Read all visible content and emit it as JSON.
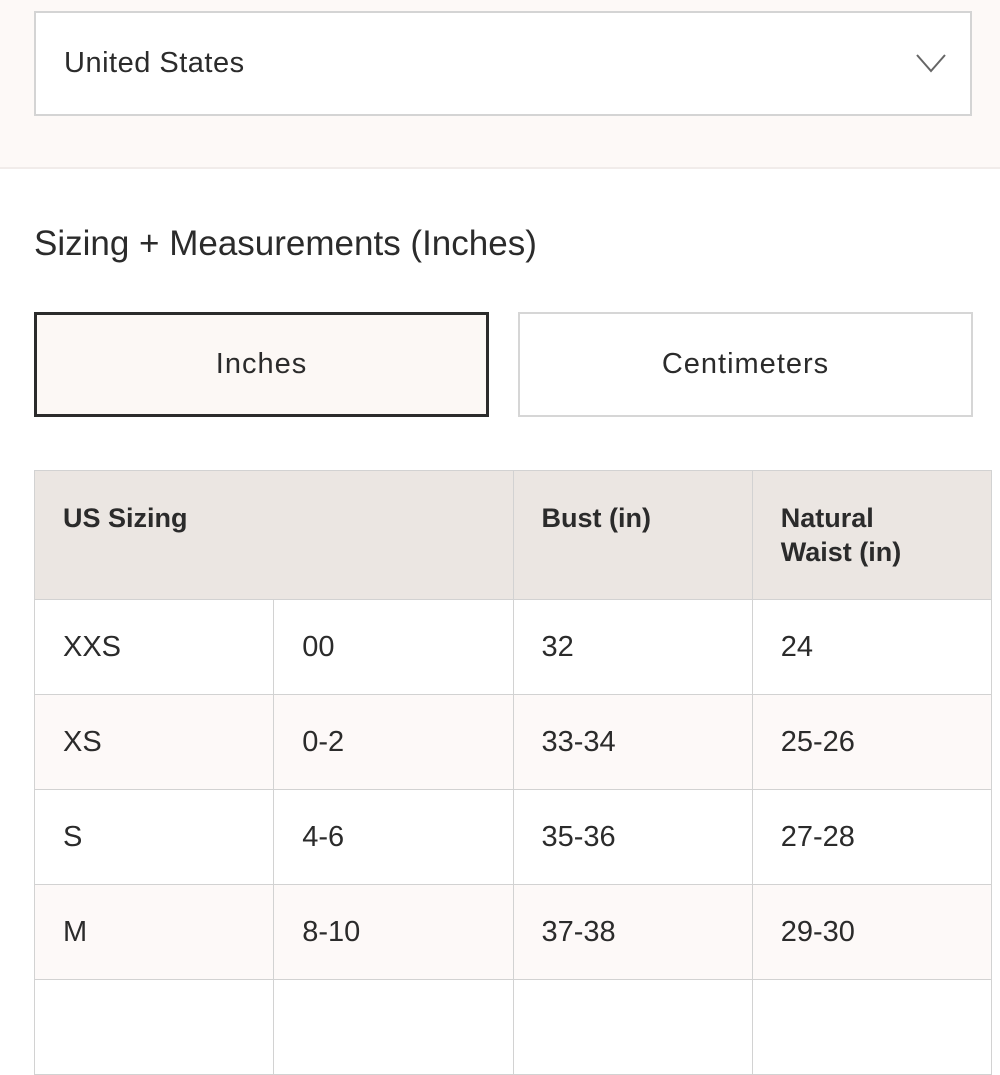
{
  "country_select": {
    "value": "United States",
    "icon": "chevron-down-icon"
  },
  "heading": "Sizing + Measurements (Inches)",
  "unit_toggle": [
    {
      "label": "Inches",
      "selected": true
    },
    {
      "label": "Centimeters",
      "selected": false
    }
  ],
  "table": {
    "headers": [
      "US Sizing",
      "Bust (in)",
      "Natural Waist (in)"
    ],
    "rows": [
      [
        "XXS",
        "00",
        "32",
        "24"
      ],
      [
        "XS",
        "0-2",
        "33-34",
        "25-26"
      ],
      [
        "S",
        "4-6",
        "35-36",
        "27-28"
      ],
      [
        "M",
        "8-10",
        "37-38",
        "29-30"
      ]
    ]
  },
  "colors": {
    "header_bg": "#ebe6e2",
    "selected_bg": "#fcf8f5",
    "text": "#2b2b2b"
  }
}
